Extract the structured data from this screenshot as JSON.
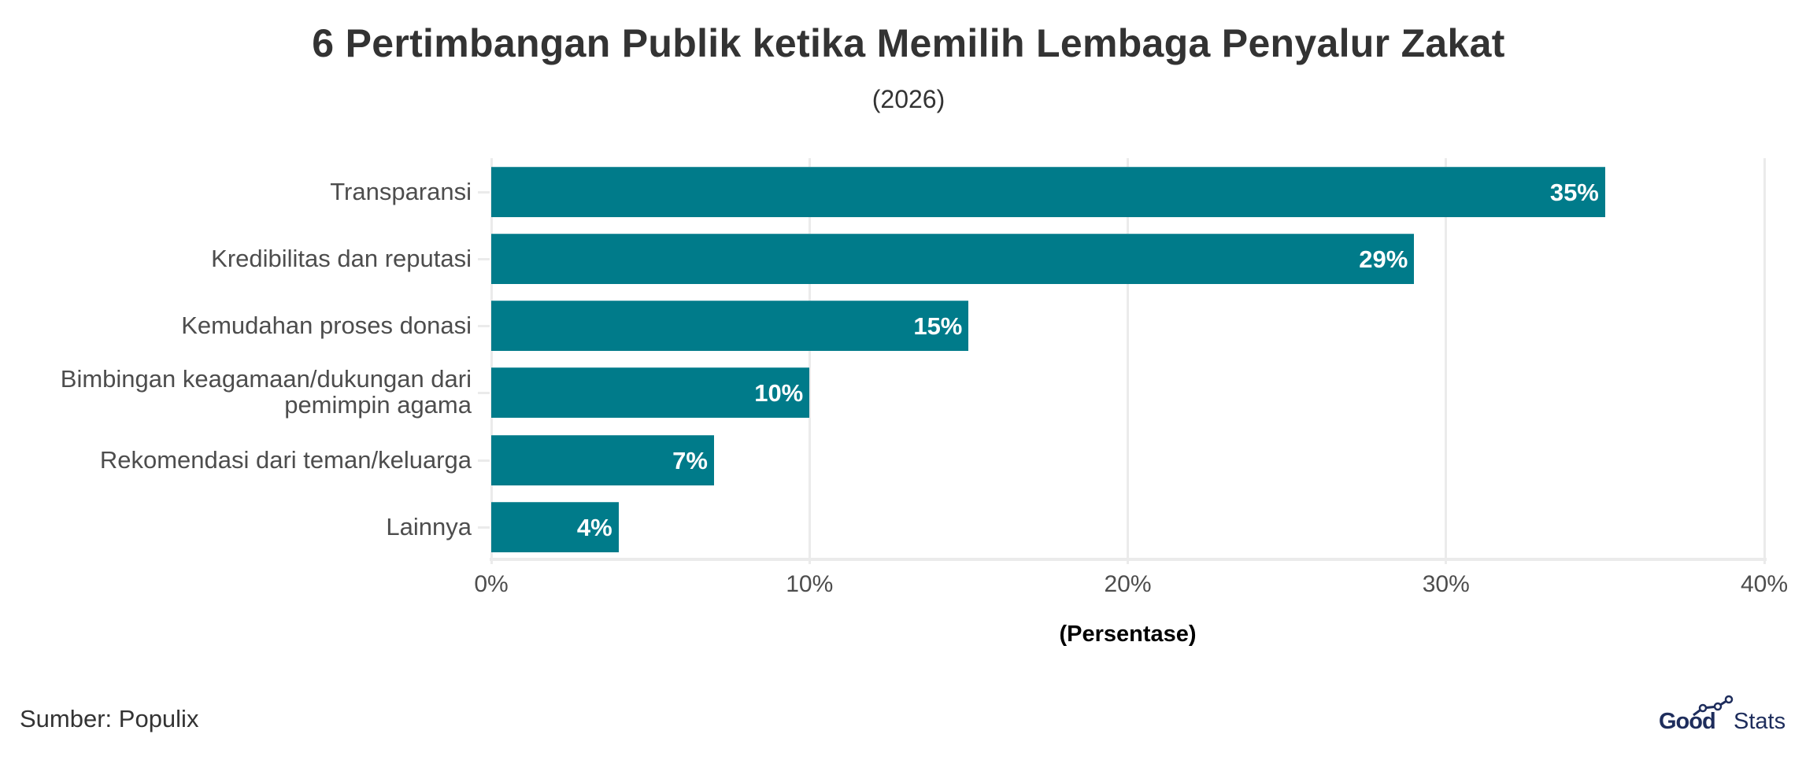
{
  "header": {
    "title": "6 Pertimbangan Publik ketika Memilih Lembaga Penyalur Zakat",
    "subtitle": "(2026)"
  },
  "chart_data": {
    "type": "bar",
    "orientation": "horizontal",
    "title": "6 Pertimbangan Publik ketika Memilih Lembaga Penyalur Zakat",
    "subtitle": "(2026)",
    "categories": [
      "Transparansi",
      "Kredibilitas dan reputasi",
      "Kemudahan proses donasi",
      "Bimbingan keagamaan/dukungan dari pemimpin agama",
      "Rekomendasi dari teman/keluarga",
      "Lainnya"
    ],
    "category_lines": [
      [
        "Transparansi"
      ],
      [
        "Kredibilitas dan reputasi"
      ],
      [
        "Kemudahan proses donasi"
      ],
      [
        "Bimbingan keagamaan/dukungan dari",
        "pemimpin agama"
      ],
      [
        "Rekomendasi dari teman/keluarga"
      ],
      [
        "Lainnya"
      ]
    ],
    "values": [
      35,
      29,
      15,
      10,
      7,
      4
    ],
    "value_labels": [
      "35%",
      "29%",
      "15%",
      "10%",
      "7%",
      "4%"
    ],
    "xlabel": "(Persentase)",
    "ylabel": "",
    "xlim": [
      0,
      40
    ],
    "x_ticks": [
      0,
      10,
      20,
      30,
      40
    ],
    "x_tick_labels": [
      "0%",
      "10%",
      "20%",
      "30%",
      "40%"
    ],
    "grid": true,
    "legend": null,
    "bar_color": "#007b8a"
  },
  "footer": {
    "source": "Sumber: Populix",
    "logo": {
      "part1": "Good",
      "part2": "Stats",
      "color": "#1e2d5c",
      "icon": "line-chart-icon"
    }
  }
}
